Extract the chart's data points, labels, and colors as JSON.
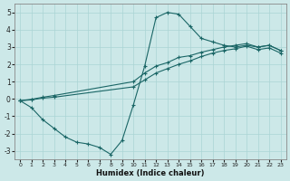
{
  "xlabel": "Humidex (Indice chaleur)",
  "bg_color": "#cce8e8",
  "line_color": "#1a6666",
  "grid_color": "#aad4d4",
  "xlim": [
    -0.5,
    23.5
  ],
  "ylim": [
    -3.5,
    5.5
  ],
  "xticks": [
    0,
    1,
    2,
    3,
    4,
    5,
    6,
    7,
    8,
    9,
    10,
    11,
    12,
    13,
    14,
    15,
    16,
    17,
    18,
    19,
    20,
    21,
    22,
    23
  ],
  "yticks": [
    -3,
    -2,
    -1,
    0,
    1,
    2,
    3,
    4,
    5
  ],
  "line1": {
    "x": [
      0,
      1,
      2,
      3,
      4,
      5,
      6,
      7,
      8,
      9,
      10,
      11,
      12,
      13,
      14,
      15,
      16,
      17,
      18,
      19,
      20,
      21,
      22,
      23
    ],
    "y": [
      -0.1,
      -0.5,
      -1.2,
      -1.7,
      -2.2,
      -2.5,
      -2.6,
      -2.8,
      -3.2,
      -2.4,
      -0.35,
      1.9,
      4.7,
      5.0,
      4.9,
      4.2,
      3.5,
      3.3,
      3.1,
      3.0,
      3.1,
      3.0,
      3.1,
      2.8
    ]
  },
  "line2": {
    "x": [
      0,
      1,
      2,
      3,
      10,
      11,
      12,
      13,
      14,
      15,
      16,
      17,
      18,
      19,
      20,
      21,
      22,
      23
    ],
    "y": [
      -0.1,
      -0.02,
      0.1,
      0.2,
      1.0,
      1.5,
      1.9,
      2.1,
      2.4,
      2.5,
      2.7,
      2.85,
      3.0,
      3.1,
      3.2,
      3.0,
      3.1,
      2.8
    ]
  },
  "line3": {
    "x": [
      0,
      1,
      2,
      3,
      10,
      11,
      12,
      13,
      14,
      15,
      16,
      17,
      18,
      19,
      20,
      21,
      22,
      23
    ],
    "y": [
      -0.1,
      -0.05,
      0.05,
      0.1,
      0.7,
      1.1,
      1.5,
      1.75,
      2.0,
      2.2,
      2.45,
      2.65,
      2.8,
      2.9,
      3.05,
      2.85,
      2.95,
      2.65
    ]
  }
}
